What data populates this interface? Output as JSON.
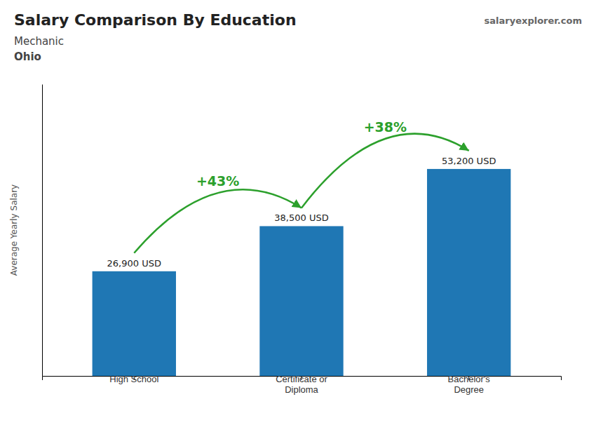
{
  "chart_data": {
    "type": "bar",
    "title": "Salary Comparison By Education",
    "subtitle": [
      "Mechanic",
      "Ohio"
    ],
    "ylabel": "Average Yearly Salary",
    "categories": [
      "High School",
      "Certificate or\nDiploma",
      "Bachelor's\nDegree"
    ],
    "values": [
      26900,
      38500,
      53200
    ],
    "value_labels": [
      "26,900 USD",
      "38,500 USD",
      "53,200 USD"
    ],
    "data_labels": true,
    "ylim": [
      0,
      75000
    ],
    "grid": false,
    "tick_labels": "x",
    "annotations": [
      {
        "type": "arrow",
        "text": "+43%"
      },
      {
        "type": "arrow",
        "text": "+38%"
      },
      {
        "type": "text",
        "text": "salaryexplorer.com"
      }
    ]
  }
}
